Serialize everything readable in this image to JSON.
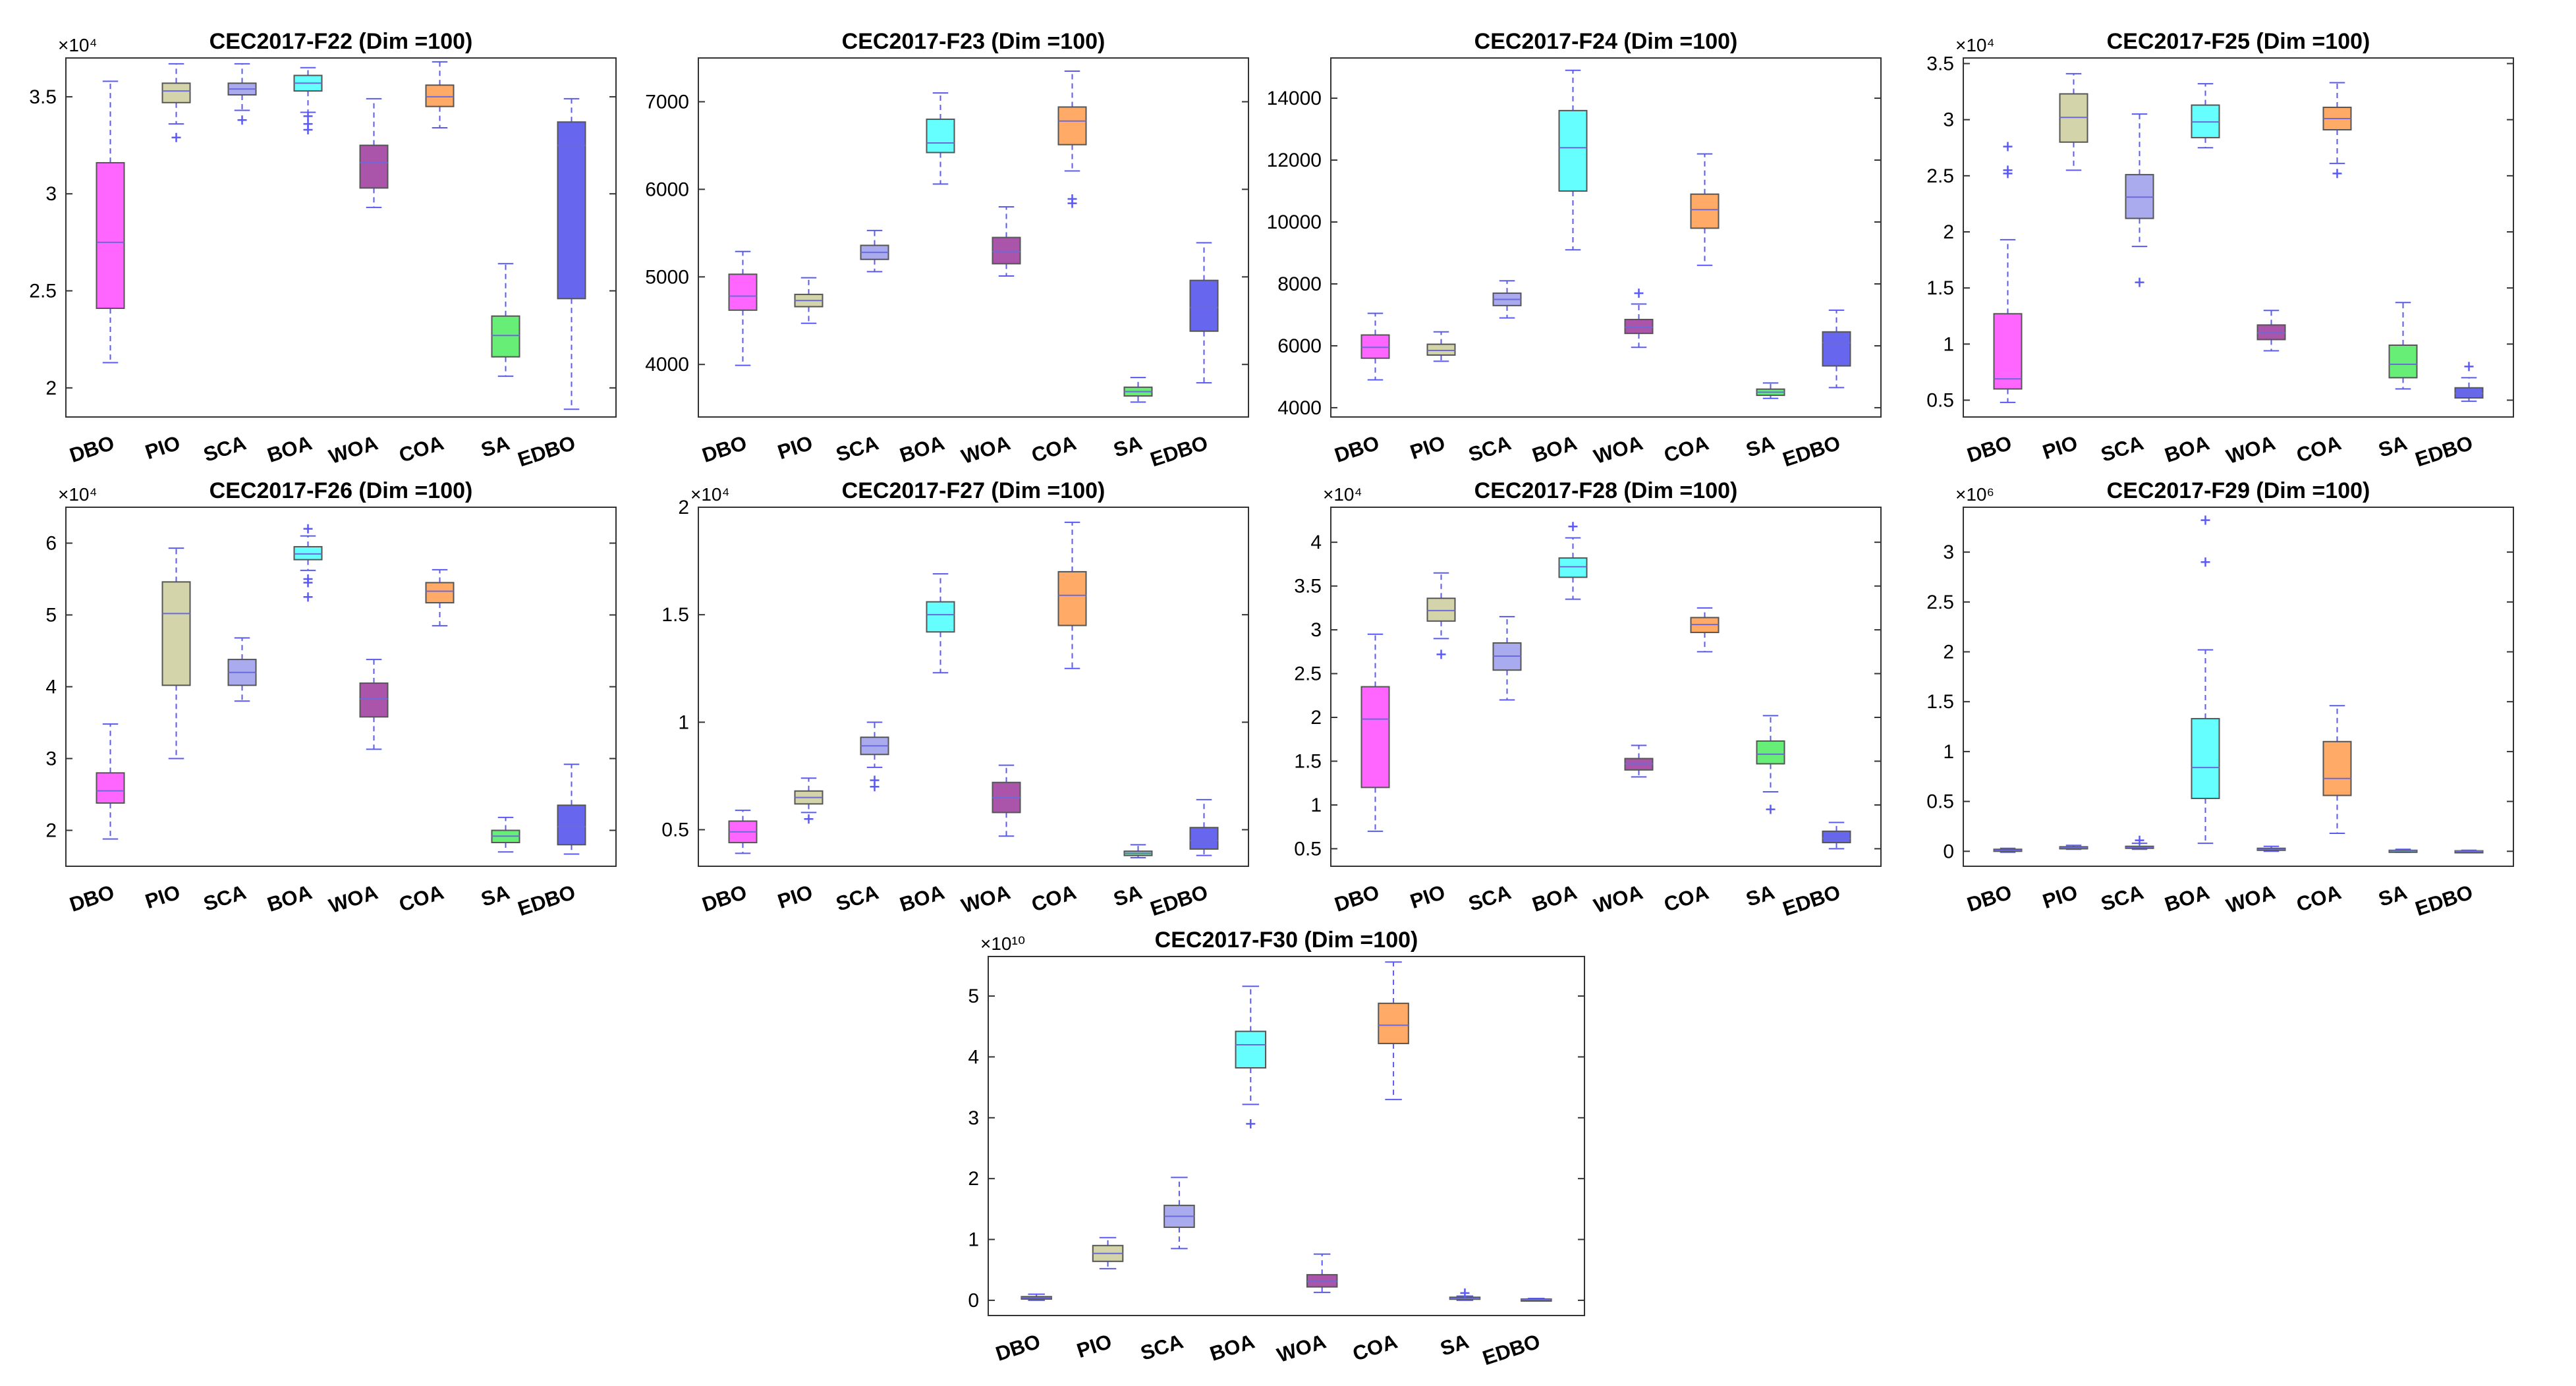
{
  "colors": {
    "DBO": "#ff66ff",
    "PIO": "#d4d4aa",
    "SCA": "#aaaaee",
    "BOA": "#66ffff",
    "WOA": "#aa55aa",
    "COA": "#ffaa66",
    "SA": "#66ee77",
    "EDBO": "#6666ee",
    "whisker": "#5a5af0",
    "outlier": "#5a5af0"
  },
  "chart_data": [
    {
      "type": "boxplot",
      "title": "CEC2017-F22 (Dim =100)",
      "categories": [
        "DBO",
        "PIO",
        "SCA",
        "BOA",
        "WOA",
        "COA",
        "SA",
        "EDBO"
      ],
      "exponent_label": "×10⁴",
      "ylim": [
        1.85,
        3.7
      ],
      "yticks": [
        2,
        2.5,
        3,
        3.5
      ],
      "ytick_labels": [
        "2",
        "2.5",
        "3",
        "3.5"
      ],
      "boxes": [
        {
          "min": 2.13,
          "q1": 2.41,
          "median": 2.75,
          "q3": 3.16,
          "max": 3.58,
          "outliers": []
        },
        {
          "min": 3.36,
          "q1": 3.47,
          "median": 3.53,
          "q3": 3.57,
          "max": 3.67,
          "outliers": [
            3.29
          ]
        },
        {
          "min": 3.43,
          "q1": 3.51,
          "median": 3.54,
          "q3": 3.57,
          "max": 3.67,
          "outliers": [
            3.38
          ]
        },
        {
          "min": 3.42,
          "q1": 3.53,
          "median": 3.57,
          "q3": 3.61,
          "max": 3.65,
          "outliers": [
            3.4,
            3.36,
            3.33
          ]
        },
        {
          "min": 2.93,
          "q1": 3.03,
          "median": 3.16,
          "q3": 3.25,
          "max": 3.49,
          "outliers": []
        },
        {
          "min": 3.34,
          "q1": 3.45,
          "median": 3.5,
          "q3": 3.56,
          "max": 3.68,
          "outliers": []
        },
        {
          "min": 2.06,
          "q1": 2.16,
          "median": 2.27,
          "q3": 2.37,
          "max": 2.64,
          "outliers": []
        },
        {
          "min": 1.89,
          "q1": 2.46,
          "median": 3.25,
          "q3": 3.37,
          "max": 3.49,
          "outliers": []
        }
      ]
    },
    {
      "type": "boxplot",
      "title": "CEC2017-F23 (Dim =100)",
      "categories": [
        "DBO",
        "PIO",
        "SCA",
        "BOA",
        "WOA",
        "COA",
        "SA",
        "EDBO"
      ],
      "exponent_label": "",
      "ylim": [
        3400,
        7500
      ],
      "yticks": [
        4000,
        5000,
        6000,
        7000
      ],
      "ytick_labels": [
        "4000",
        "5000",
        "6000",
        "7000"
      ],
      "boxes": [
        {
          "min": 3990,
          "q1": 4620,
          "median": 4780,
          "q3": 5030,
          "max": 5290,
          "outliers": []
        },
        {
          "min": 4470,
          "q1": 4660,
          "median": 4730,
          "q3": 4800,
          "max": 4990,
          "outliers": []
        },
        {
          "min": 5060,
          "q1": 5200,
          "median": 5280,
          "q3": 5360,
          "max": 5530,
          "outliers": []
        },
        {
          "min": 6060,
          "q1": 6420,
          "median": 6530,
          "q3": 6800,
          "max": 7100,
          "outliers": []
        },
        {
          "min": 5010,
          "q1": 5150,
          "median": 5290,
          "q3": 5450,
          "max": 5800,
          "outliers": []
        },
        {
          "min": 6210,
          "q1": 6510,
          "median": 6780,
          "q3": 6940,
          "max": 7350,
          "outliers": [
            5890,
            5840
          ]
        },
        {
          "min": 3570,
          "q1": 3640,
          "median": 3690,
          "q3": 3740,
          "max": 3850,
          "outliers": []
        },
        {
          "min": 3790,
          "q1": 4380,
          "median": 4650,
          "q3": 4960,
          "max": 5390,
          "outliers": []
        }
      ]
    },
    {
      "type": "boxplot",
      "title": "CEC2017-F24 (Dim =100)",
      "categories": [
        "DBO",
        "PIO",
        "SCA",
        "BOA",
        "WOA",
        "COA",
        "SA",
        "EDBO"
      ],
      "exponent_label": "",
      "ylim": [
        3700,
        15300
      ],
      "yticks": [
        4000,
        6000,
        8000,
        10000,
        12000,
        14000
      ],
      "ytick_labels": [
        "4000",
        "6000",
        "8000",
        "10000",
        "12000",
        "14000"
      ],
      "boxes": [
        {
          "min": 4900,
          "q1": 5600,
          "median": 5950,
          "q3": 6350,
          "max": 7050,
          "outliers": []
        },
        {
          "min": 5500,
          "q1": 5700,
          "median": 5850,
          "q3": 6050,
          "max": 6450,
          "outliers": []
        },
        {
          "min": 6900,
          "q1": 7300,
          "median": 7500,
          "q3": 7700,
          "max": 8100,
          "outliers": []
        },
        {
          "min": 9100,
          "q1": 11000,
          "median": 12400,
          "q3": 13600,
          "max": 14900,
          "outliers": []
        },
        {
          "min": 5950,
          "q1": 6400,
          "median": 6600,
          "q3": 6850,
          "max": 7350,
          "outliers": [
            7700
          ]
        },
        {
          "min": 8600,
          "q1": 9800,
          "median": 10400,
          "q3": 10900,
          "max": 12200,
          "outliers": []
        },
        {
          "min": 4300,
          "q1": 4400,
          "median": 4500,
          "q3": 4600,
          "max": 4800,
          "outliers": []
        },
        {
          "min": 4650,
          "q1": 5350,
          "median": 6100,
          "q3": 6450,
          "max": 7150,
          "outliers": []
        }
      ]
    },
    {
      "type": "boxplot",
      "title": "CEC2017-F25 (Dim =100)",
      "categories": [
        "DBO",
        "PIO",
        "SCA",
        "BOA",
        "WOA",
        "COA",
        "SA",
        "EDBO"
      ],
      "exponent_label": "×10⁴",
      "ylim": [
        0.35,
        3.55
      ],
      "yticks": [
        0.5,
        1,
        1.5,
        2,
        2.5,
        3,
        3.5
      ],
      "ytick_labels": [
        "0.5",
        "1",
        "1.5",
        "2",
        "2.5",
        "3",
        "3.5"
      ],
      "boxes": [
        {
          "min": 0.48,
          "q1": 0.6,
          "median": 0.69,
          "q3": 1.27,
          "max": 1.93,
          "outliers": [
            2.52,
            2.55,
            2.76
          ]
        },
        {
          "min": 2.55,
          "q1": 2.8,
          "median": 3.02,
          "q3": 3.23,
          "max": 3.41,
          "outliers": []
        },
        {
          "min": 1.87,
          "q1": 2.12,
          "median": 2.31,
          "q3": 2.51,
          "max": 3.05,
          "outliers": [
            1.55
          ]
        },
        {
          "min": 2.75,
          "q1": 2.84,
          "median": 2.98,
          "q3": 3.13,
          "max": 3.32,
          "outliers": []
        },
        {
          "min": 0.94,
          "q1": 1.04,
          "median": 1.1,
          "q3": 1.17,
          "max": 1.3,
          "outliers": []
        },
        {
          "min": 2.61,
          "q1": 2.91,
          "median": 3.01,
          "q3": 3.11,
          "max": 3.33,
          "outliers": [
            2.52
          ]
        },
        {
          "min": 0.6,
          "q1": 0.7,
          "median": 0.82,
          "q3": 0.99,
          "max": 1.37,
          "outliers": []
        },
        {
          "min": 0.49,
          "q1": 0.52,
          "median": 0.56,
          "q3": 0.61,
          "max": 0.7,
          "outliers": [
            0.8
          ]
        }
      ]
    },
    {
      "type": "boxplot",
      "title": "CEC2017-F26 (Dim =100)",
      "categories": [
        "DBO",
        "PIO",
        "SCA",
        "BOA",
        "WOA",
        "COA",
        "SA",
        "EDBO"
      ],
      "exponent_label": "×10⁴",
      "ylim": [
        1.5,
        6.5
      ],
      "yticks": [
        2,
        3,
        4,
        5,
        6
      ],
      "ytick_labels": [
        "2",
        "3",
        "4",
        "5",
        "6"
      ],
      "boxes": [
        {
          "min": 1.88,
          "q1": 2.38,
          "median": 2.55,
          "q3": 2.8,
          "max": 3.48,
          "outliers": []
        },
        {
          "min": 3.0,
          "q1": 4.02,
          "median": 5.02,
          "q3": 5.46,
          "max": 5.93,
          "outliers": []
        },
        {
          "min": 3.8,
          "q1": 4.02,
          "median": 4.2,
          "q3": 4.38,
          "max": 4.68,
          "outliers": []
        },
        {
          "min": 5.62,
          "q1": 5.77,
          "median": 5.85,
          "q3": 5.95,
          "max": 6.1,
          "outliers": [
            6.2,
            5.5,
            5.45,
            5.25
          ]
        },
        {
          "min": 3.13,
          "q1": 3.58,
          "median": 3.83,
          "q3": 4.05,
          "max": 4.38,
          "outliers": []
        },
        {
          "min": 4.85,
          "q1": 5.17,
          "median": 5.33,
          "q3": 5.45,
          "max": 5.63,
          "outliers": []
        },
        {
          "min": 1.7,
          "q1": 1.83,
          "median": 1.92,
          "q3": 2.0,
          "max": 2.18,
          "outliers": []
        },
        {
          "min": 1.67,
          "q1": 1.8,
          "median": 2.05,
          "q3": 2.35,
          "max": 2.92,
          "outliers": []
        }
      ]
    },
    {
      "type": "boxplot",
      "title": "CEC2017-F27 (Dim =100)",
      "categories": [
        "DBO",
        "PIO",
        "SCA",
        "BOA",
        "WOA",
        "COA",
        "SA",
        "EDBO"
      ],
      "exponent_label": "×10⁴",
      "ylim": [
        0.33,
        2.0
      ],
      "yticks": [
        0.5,
        1,
        1.5,
        2
      ],
      "ytick_labels": [
        "0.5",
        "1",
        "1.5",
        "2"
      ],
      "boxes": [
        {
          "min": 0.39,
          "q1": 0.44,
          "median": 0.49,
          "q3": 0.54,
          "max": 0.59,
          "outliers": []
        },
        {
          "min": 0.58,
          "q1": 0.62,
          "median": 0.65,
          "q3": 0.68,
          "max": 0.74,
          "outliers": [
            0.55
          ]
        },
        {
          "min": 0.79,
          "q1": 0.85,
          "median": 0.89,
          "q3": 0.93,
          "max": 1.0,
          "outliers": [
            0.73,
            0.7
          ]
        },
        {
          "min": 1.23,
          "q1": 1.42,
          "median": 1.5,
          "q3": 1.56,
          "max": 1.69,
          "outliers": []
        },
        {
          "min": 0.47,
          "q1": 0.58,
          "median": 0.65,
          "q3": 0.72,
          "max": 0.8,
          "outliers": []
        },
        {
          "min": 1.25,
          "q1": 1.45,
          "median": 1.59,
          "q3": 1.7,
          "max": 1.93,
          "outliers": []
        },
        {
          "min": 0.37,
          "q1": 0.38,
          "median": 0.39,
          "q3": 0.4,
          "max": 0.43,
          "outliers": []
        },
        {
          "min": 0.38,
          "q1": 0.41,
          "median": 0.45,
          "q3": 0.51,
          "max": 0.64,
          "outliers": []
        }
      ]
    },
    {
      "type": "boxplot",
      "title": "CEC2017-F28 (Dim =100)",
      "categories": [
        "DBO",
        "PIO",
        "SCA",
        "BOA",
        "WOA",
        "COA",
        "SA",
        "EDBO"
      ],
      "exponent_label": "×10⁴",
      "ylim": [
        0.3,
        4.4
      ],
      "yticks": [
        0.5,
        1,
        1.5,
        2,
        2.5,
        3,
        3.5,
        4
      ],
      "ytick_labels": [
        "0.5",
        "1",
        "1.5",
        "2",
        "2.5",
        "3",
        "3.5",
        "4"
      ],
      "boxes": [
        {
          "min": 0.7,
          "q1": 1.2,
          "median": 1.98,
          "q3": 2.35,
          "max": 2.95,
          "outliers": []
        },
        {
          "min": 2.9,
          "q1": 3.1,
          "median": 3.22,
          "q3": 3.36,
          "max": 3.65,
          "outliers": [
            2.72
          ]
        },
        {
          "min": 2.2,
          "q1": 2.54,
          "median": 2.7,
          "q3": 2.85,
          "max": 3.15,
          "outliers": []
        },
        {
          "min": 3.35,
          "q1": 3.6,
          "median": 3.72,
          "q3": 3.82,
          "max": 4.05,
          "outliers": [
            4.18
          ]
        },
        {
          "min": 1.32,
          "q1": 1.4,
          "median": 1.47,
          "q3": 1.53,
          "max": 1.68,
          "outliers": []
        },
        {
          "min": 2.75,
          "q1": 2.97,
          "median": 3.06,
          "q3": 3.14,
          "max": 3.25,
          "outliers": []
        },
        {
          "min": 1.15,
          "q1": 1.47,
          "median": 1.58,
          "q3": 1.73,
          "max": 2.02,
          "outliers": [
            0.95
          ]
        },
        {
          "min": 0.5,
          "q1": 0.57,
          "median": 0.62,
          "q3": 0.7,
          "max": 0.8,
          "outliers": []
        }
      ]
    },
    {
      "type": "boxplot",
      "title": "CEC2017-F29 (Dim =100)",
      "categories": [
        "DBO",
        "PIO",
        "SCA",
        "BOA",
        "WOA",
        "COA",
        "SA",
        "EDBO"
      ],
      "exponent_label": "×10⁶",
      "ylim": [
        -0.15,
        3.45
      ],
      "yticks": [
        0,
        0.5,
        1,
        1.5,
        2,
        2.5,
        3
      ],
      "ytick_labels": [
        "0",
        "0.5",
        "1",
        "1.5",
        "2",
        "2.5",
        "3"
      ],
      "boxes": [
        {
          "min": -0.01,
          "q1": 0.0,
          "median": 0.01,
          "q3": 0.02,
          "max": 0.03,
          "outliers": []
        },
        {
          "min": 0.02,
          "q1": 0.03,
          "median": 0.035,
          "q3": 0.045,
          "max": 0.06,
          "outliers": []
        },
        {
          "min": 0.02,
          "q1": 0.03,
          "median": 0.04,
          "q3": 0.05,
          "max": 0.08,
          "outliers": [
            0.11
          ]
        },
        {
          "min": 0.08,
          "q1": 0.53,
          "median": 0.84,
          "q3": 1.33,
          "max": 2.02,
          "outliers": [
            2.9,
            3.32
          ]
        },
        {
          "min": 0.0,
          "q1": 0.01,
          "median": 0.02,
          "q3": 0.03,
          "max": 0.05,
          "outliers": []
        },
        {
          "min": 0.18,
          "q1": 0.56,
          "median": 0.73,
          "q3": 1.1,
          "max": 1.46,
          "outliers": []
        },
        {
          "min": -0.01,
          "q1": 0.0,
          "median": 0.005,
          "q3": 0.01,
          "max": 0.02,
          "outliers": []
        },
        {
          "min": -0.005,
          "q1": 0.0,
          "median": 0.002,
          "q3": 0.005,
          "max": 0.01,
          "outliers": []
        }
      ]
    },
    {
      "type": "boxplot",
      "title": "CEC2017-F30 (Dim =100)",
      "categories": [
        "DBO",
        "PIO",
        "SCA",
        "BOA",
        "WOA",
        "COA",
        "SA",
        "EDBO"
      ],
      "exponent_label": "×10¹⁰",
      "ylim": [
        -0.25,
        5.65
      ],
      "yticks": [
        0,
        1,
        2,
        3,
        4,
        5
      ],
      "ytick_labels": [
        "0",
        "1",
        "2",
        "3",
        "4",
        "5"
      ],
      "boxes": [
        {
          "min": 0.0,
          "q1": 0.02,
          "median": 0.04,
          "q3": 0.06,
          "max": 0.1,
          "outliers": []
        },
        {
          "min": 0.52,
          "q1": 0.64,
          "median": 0.77,
          "q3": 0.9,
          "max": 1.03,
          "outliers": []
        },
        {
          "min": 0.85,
          "q1": 1.2,
          "median": 1.38,
          "q3": 1.56,
          "max": 2.02,
          "outliers": []
        },
        {
          "min": 3.22,
          "q1": 3.82,
          "median": 4.2,
          "q3": 4.42,
          "max": 5.16,
          "outliers": [
            2.9
          ]
        },
        {
          "min": 0.13,
          "q1": 0.22,
          "median": 0.31,
          "q3": 0.42,
          "max": 0.76,
          "outliers": []
        },
        {
          "min": 3.3,
          "q1": 4.22,
          "median": 4.52,
          "q3": 4.88,
          "max": 5.56,
          "outliers": []
        },
        {
          "min": 0.0,
          "q1": 0.02,
          "median": 0.03,
          "q3": 0.05,
          "max": 0.07,
          "outliers": [
            0.12
          ]
        },
        {
          "min": -0.01,
          "q1": 0.0,
          "median": 0.01,
          "q3": 0.02,
          "max": 0.03,
          "outliers": []
        }
      ]
    }
  ]
}
